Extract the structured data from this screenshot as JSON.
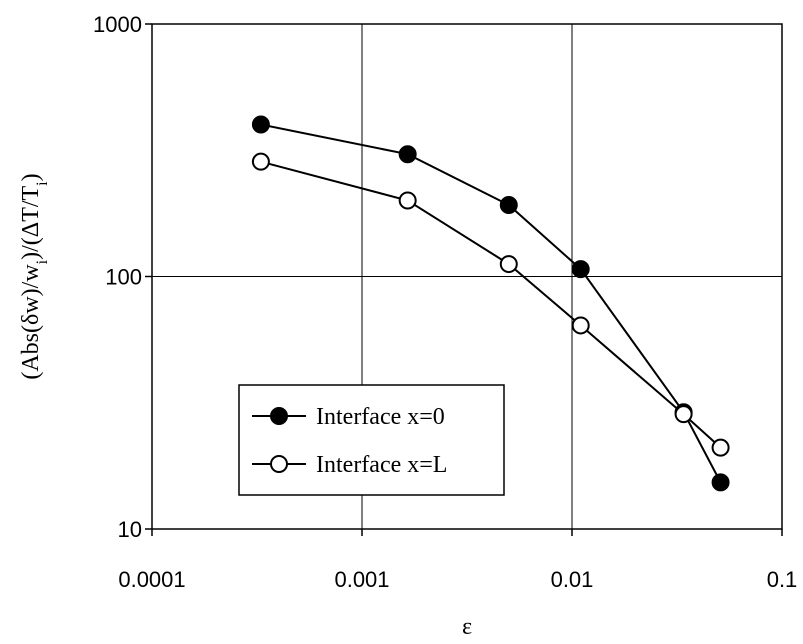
{
  "chart_data": {
    "type": "line",
    "xlabel": "ε",
    "ylabel_parts": {
      "a": "(Abs(δw)/w",
      "a_sub": "i",
      "b": ")/(ΔT/T",
      "b_sub": "i",
      "c": ")"
    },
    "xscale": "log",
    "yscale": "log",
    "xlim": [
      0.0001,
      0.1
    ],
    "ylim": [
      10,
      1000
    ],
    "x_ticks": [
      0.0001,
      0.001,
      0.01,
      0.1
    ],
    "x_tick_labels": [
      "0.0001",
      "0.001",
      "0.01",
      "0.1"
    ],
    "y_ticks": [
      10,
      100,
      1000
    ],
    "y_tick_labels": [
      "10",
      "100",
      "1000"
    ],
    "grid": true,
    "legend_position": "lower-left",
    "series": [
      {
        "name": "Interface x=0",
        "marker": "filled-circle",
        "color": "#000000",
        "x": [
          0.00033,
          0.00165,
          0.005,
          0.011,
          0.034,
          0.051
        ],
        "y": [
          400,
          305,
          192,
          107,
          29,
          15.3
        ]
      },
      {
        "name": "Interface x=L",
        "marker": "open-circle",
        "color": "#000000",
        "x": [
          0.00033,
          0.00165,
          0.005,
          0.011,
          0.034,
          0.051
        ],
        "y": [
          285,
          200,
          112,
          64,
          28.5,
          21
        ]
      }
    ]
  }
}
